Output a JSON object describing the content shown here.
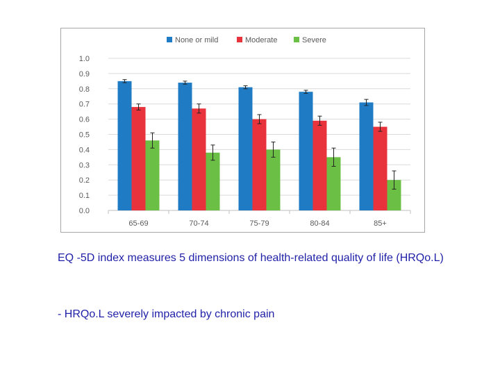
{
  "chart_data": {
    "type": "bar",
    "title": "",
    "xlabel": "",
    "ylabel": "",
    "ylim": [
      0,
      1.0
    ],
    "yticks": [
      "0.0",
      "0.1",
      "0.2",
      "0.3",
      "0.4",
      "0.5",
      "0.6",
      "0.7",
      "0.8",
      "0.9",
      "1.0"
    ],
    "categories": [
      "65-69",
      "70-74",
      "75-79",
      "80-84",
      "85+"
    ],
    "legend_position": "top",
    "grid": true,
    "series": [
      {
        "name": "None or mild",
        "color": "#1f7cc4",
        "values": [
          0.85,
          0.84,
          0.81,
          0.78,
          0.71
        ],
        "errors": [
          0.01,
          0.01,
          0.01,
          0.01,
          0.02
        ]
      },
      {
        "name": "Moderate",
        "color": "#e8333c",
        "values": [
          0.68,
          0.67,
          0.6,
          0.59,
          0.55
        ],
        "errors": [
          0.02,
          0.03,
          0.03,
          0.03,
          0.03
        ]
      },
      {
        "name": "Severe",
        "color": "#6cbf45",
        "values": [
          0.46,
          0.38,
          0.4,
          0.35,
          0.2
        ],
        "errors": [
          0.05,
          0.05,
          0.05,
          0.06,
          0.06
        ]
      }
    ]
  },
  "caption": {
    "line1": "EQ -5D index measures 5 dimensions of health-related quality of life (HRQo.L)",
    "line2": "- HRQo.L severely impacted by chronic pain"
  }
}
